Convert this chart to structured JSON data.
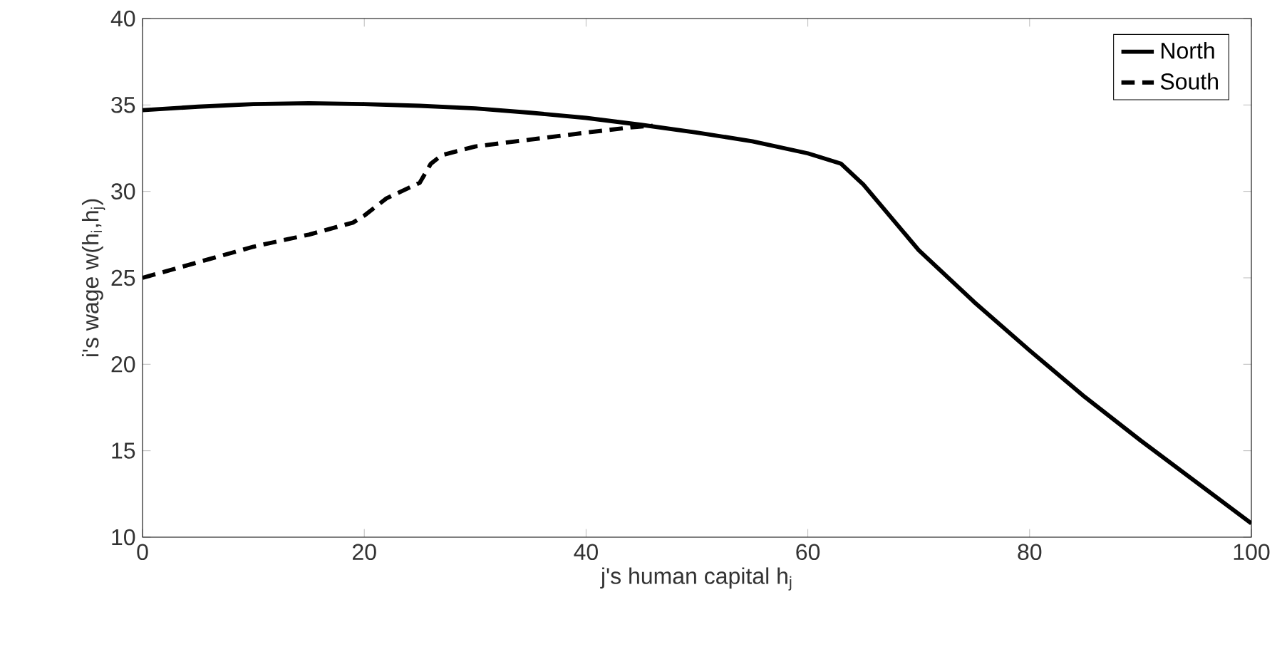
{
  "chart_data": {
    "type": "line",
    "xlabel": "j's human capital h$_{j}$",
    "ylabel": "i's wage w(h$_{i}$,h$_{j}$)",
    "xlim": [
      0,
      100
    ],
    "ylim": [
      10,
      40
    ],
    "xticks": [
      0,
      20,
      40,
      60,
      80,
      100
    ],
    "yticks": [
      10,
      15,
      20,
      25,
      30,
      35,
      40
    ],
    "legend": "top right",
    "grid": false,
    "series": [
      {
        "name": "North",
        "color": "#000000",
        "line_style": "solid",
        "x": [
          0,
          5,
          10,
          15,
          20,
          25,
          30,
          35,
          40,
          45,
          50,
          55,
          60,
          63,
          65,
          70,
          75,
          80,
          85,
          90,
          95,
          100
        ],
        "values": [
          34.7,
          34.9,
          35.05,
          35.1,
          35.05,
          34.95,
          34.8,
          34.55,
          34.25,
          33.85,
          33.4,
          32.9,
          32.2,
          31.6,
          30.4,
          26.6,
          23.6,
          20.8,
          18.1,
          15.6,
          13.2,
          10.8
        ]
      },
      {
        "name": "South",
        "color": "#000000",
        "line_style": "dashed",
        "x": [
          0,
          5,
          10,
          15,
          19,
          20,
          22,
          25,
          26,
          27,
          30,
          35,
          40,
          44,
          46
        ],
        "values": [
          25,
          25.9,
          26.8,
          27.5,
          28.2,
          28.6,
          29.6,
          30.5,
          31.6,
          32.1,
          32.6,
          33,
          33.4,
          33.7,
          33.8
        ]
      }
    ]
  }
}
